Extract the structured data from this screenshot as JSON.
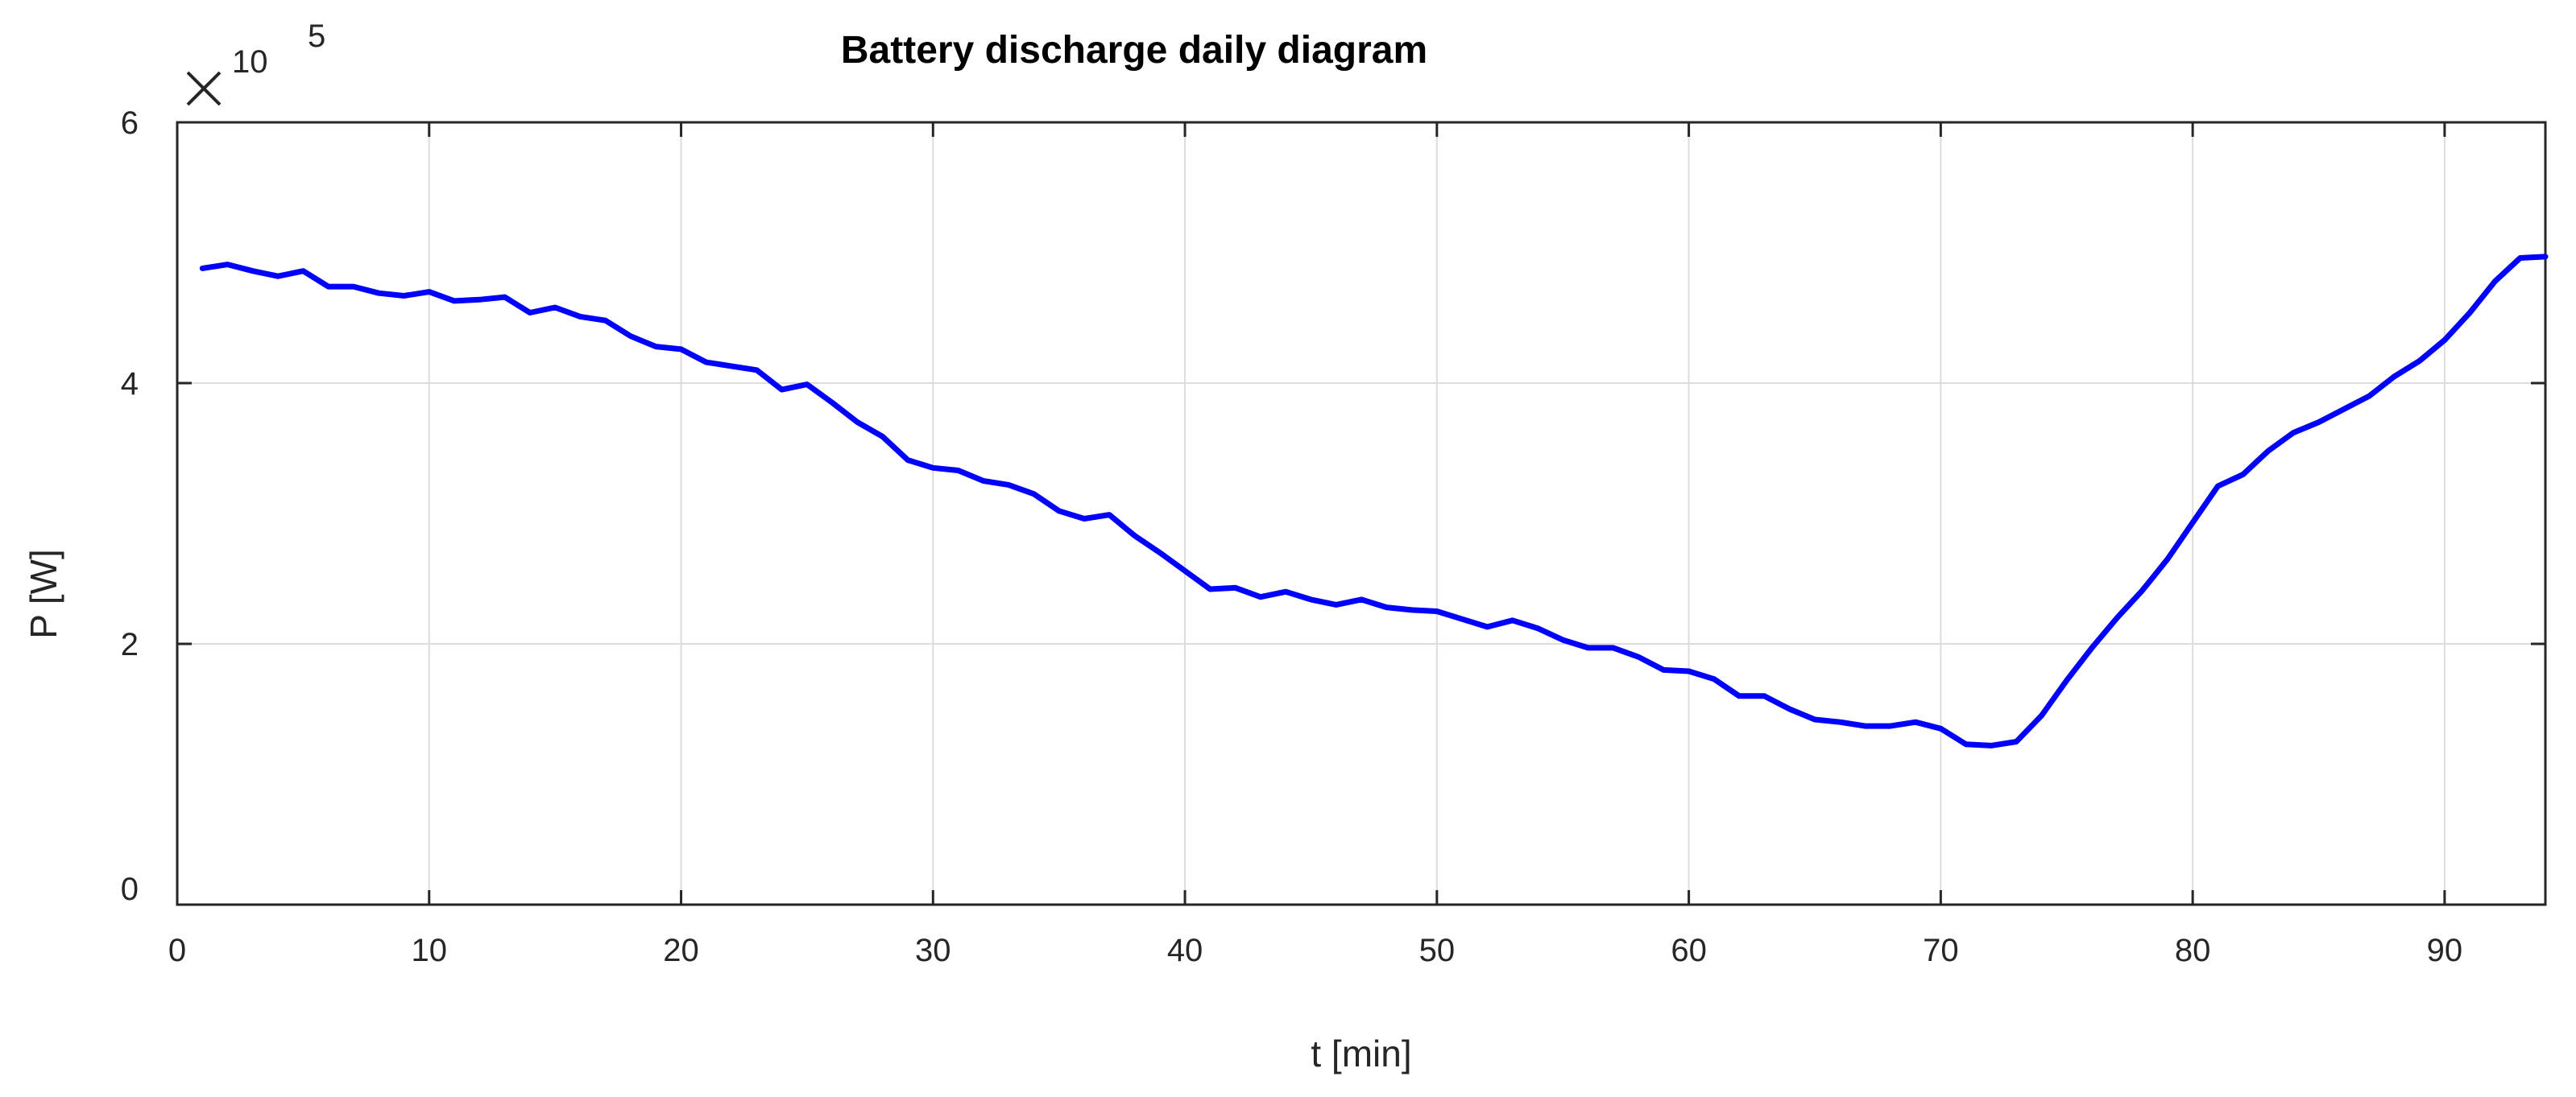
{
  "chart_data": {
    "type": "line",
    "title": "Battery discharge daily diagram",
    "xlabel": "t [min]",
    "ylabel": "P [W]",
    "y_exponent": {
      "base": "10",
      "power": "5",
      "multiplier": 100000
    },
    "xlim": [
      0,
      94
    ],
    "ylim": [
      0,
      6
    ],
    "xticks": [
      0,
      10,
      20,
      30,
      40,
      50,
      60,
      70,
      80,
      90
    ],
    "yticks": [
      0,
      2,
      4,
      6
    ],
    "grid": true,
    "series": [
      {
        "color": "#0000ff",
        "x": [
          1,
          2,
          3,
          4,
          5,
          6,
          7,
          8,
          9,
          10,
          11,
          12,
          13,
          14,
          15,
          16,
          17,
          18,
          19,
          20,
          21,
          22,
          23,
          24,
          25,
          26,
          27,
          28,
          29,
          30,
          31,
          32,
          33,
          34,
          35,
          36,
          37,
          38,
          39,
          40,
          41,
          42,
          43,
          44,
          45,
          46,
          47,
          48,
          49,
          50,
          51,
          52,
          53,
          54,
          55,
          56,
          57,
          58,
          59,
          60,
          61,
          62,
          63,
          64,
          65,
          66,
          67,
          68,
          69,
          70,
          71,
          72,
          73,
          74,
          75,
          76,
          77,
          78,
          79,
          80,
          81,
          82,
          83,
          84,
          85,
          86,
          87,
          88,
          89,
          90,
          91,
          92,
          93,
          94
        ],
        "y": [
          4.88,
          4.91,
          4.86,
          4.82,
          4.86,
          4.74,
          4.74,
          4.69,
          4.67,
          4.7,
          4.63,
          4.64,
          4.66,
          4.54,
          4.58,
          4.51,
          4.48,
          4.36,
          4.28,
          4.26,
          4.16,
          4.13,
          4.1,
          3.95,
          3.99,
          3.85,
          3.7,
          3.59,
          3.41,
          3.35,
          3.33,
          3.25,
          3.22,
          3.15,
          3.02,
          2.96,
          2.99,
          2.83,
          2.7,
          2.56,
          2.42,
          2.43,
          2.36,
          2.4,
          2.34,
          2.3,
          2.34,
          2.28,
          2.26,
          2.25,
          2.19,
          2.13,
          2.18,
          2.12,
          2.03,
          1.97,
          1.97,
          1.9,
          1.8,
          1.79,
          1.73,
          1.6,
          1.6,
          1.5,
          1.42,
          1.4,
          1.37,
          1.37,
          1.4,
          1.35,
          1.23,
          1.22,
          1.25,
          1.45,
          1.72,
          1.97,
          2.2,
          2.41,
          2.65,
          2.93,
          3.21,
          3.3,
          3.48,
          3.62,
          3.7,
          3.8,
          3.9,
          4.05,
          4.17,
          4.33,
          4.54,
          4.78,
          4.96,
          4.97
        ]
      }
    ]
  }
}
